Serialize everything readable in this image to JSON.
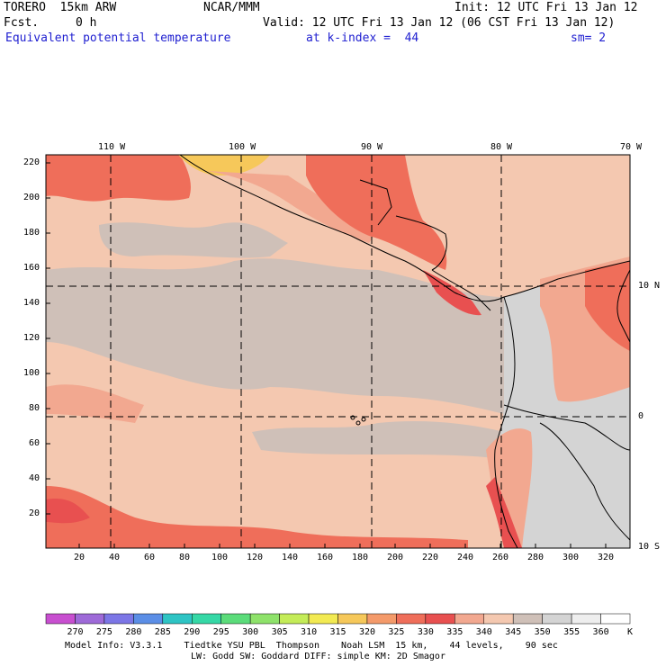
{
  "header": {
    "model": "TORERO  15km ARW",
    "org": "NCAR/MMM",
    "init": "Init: 12 UTC Fri 13 Jan 12",
    "fcst_label": "Fcst.",
    "fcst_value": "0 h",
    "valid": "Valid: 12 UTC Fri 13 Jan 12 (06 CST Fri 13 Jan 12)",
    "field": "Equivalent potential temperature",
    "level": "at k-index =  44",
    "smooth": "sm= 2"
  },
  "lon_labels": [
    "110 W",
    "100 W",
    "90 W",
    "80 W",
    "70 W"
  ],
  "lat_labels": [
    "10 N",
    "0",
    "10 S"
  ],
  "y_ticks": [
    "220",
    "200",
    "180",
    "160",
    "140",
    "120",
    "100",
    "80",
    "60",
    "40",
    "20"
  ],
  "x_ticks": [
    "20",
    "40",
    "60",
    "80",
    "100",
    "120",
    "140",
    "160",
    "180",
    "200",
    "220",
    "240",
    "260",
    "280",
    "300",
    "320"
  ],
  "colorbar": {
    "values": [
      "270",
      "275",
      "280",
      "285",
      "290",
      "295",
      "300",
      "305",
      "310",
      "315",
      "320",
      "325",
      "330",
      "335",
      "340",
      "345",
      "350",
      "355",
      "360"
    ],
    "unit": "K",
    "colors": [
      "#c84fd0",
      "#9e6ad8",
      "#7c76e6",
      "#5b8ee6",
      "#2ec4c4",
      "#35d8a6",
      "#5bdc7a",
      "#8ee26a",
      "#c4ec58",
      "#f2ea52",
      "#f6c85a",
      "#f49a6a",
      "#ef6e5a",
      "#e85050",
      "#f2a890",
      "#f4c8b0",
      "#cfc0b8",
      "#d4d4d4",
      "#eeeeee",
      "#ffffff"
    ]
  },
  "footer": {
    "line1": "Model Info: V3.3.1    Tiedtke YSU PBL  Thompson    Noah LSM  15 km,    44 levels,    90 sec",
    "line2": "LW: Godd SW: Goddard DIFF: simple KM: 2D Smagor"
  }
}
